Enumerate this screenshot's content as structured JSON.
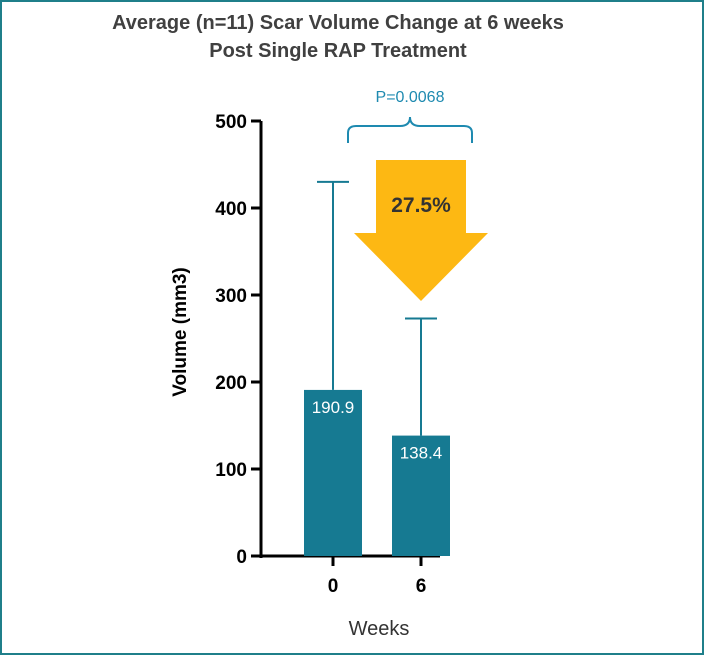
{
  "chart_data": {
    "type": "bar",
    "title_line1": "Average (n=11) Scar Volume Change at 6 weeks",
    "title_line2": "Post Single RAP Treatment",
    "xlabel": "Weeks",
    "ylabel": "Volume (mm3)",
    "ylim": [
      0,
      500
    ],
    "yticks": [
      0,
      100,
      200,
      300,
      400,
      500
    ],
    "categories": [
      "0",
      "6"
    ],
    "values": [
      190.9,
      138.4
    ],
    "value_labels": [
      "190.9",
      "138.4"
    ],
    "error_upper": [
      430,
      273
    ],
    "annotation_p": "P=0.0068",
    "annotation_change": "27.5%",
    "colors": {
      "bar": "#167a92",
      "bracket": "#1e8ab0",
      "arrow": "#fdb813",
      "axis": "#000000",
      "title": "#404040"
    }
  }
}
